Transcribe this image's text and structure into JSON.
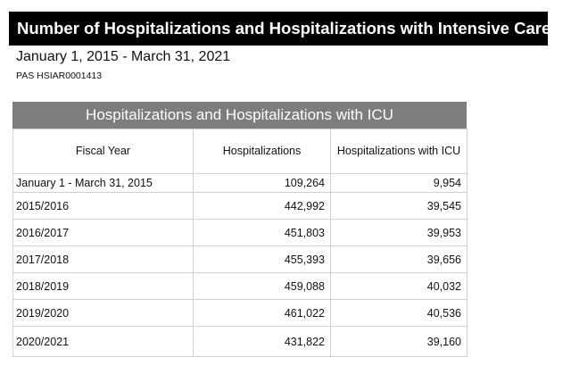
{
  "document": {
    "title": "Number of Hospitalizations and Hospitalizations with Intensive Care",
    "date_range": "January 1, 2015 - March 31, 2021",
    "report_id": "PAS HSIAR0001413"
  },
  "table": {
    "caption": "Hospitalizations and Hospitalizations with ICU",
    "columns": [
      "Fiscal Year",
      "Hospitalizations",
      "Hospitalizations with ICU"
    ],
    "rows": [
      {
        "fiscal_year": "January 1 - March 31, 2015",
        "hospitalizations": "109,264",
        "icu": "9,954"
      },
      {
        "fiscal_year": "2015/2016",
        "hospitalizations": "442,992",
        "icu": "39,545"
      },
      {
        "fiscal_year": "2016/2017",
        "hospitalizations": "451,803",
        "icu": "39,953"
      },
      {
        "fiscal_year": "2017/2018",
        "hospitalizations": "455,393",
        "icu": "39,656"
      },
      {
        "fiscal_year": "2018/2019",
        "hospitalizations": "459,088",
        "icu": "40,032"
      },
      {
        "fiscal_year": "2019/2020",
        "hospitalizations": "461,022",
        "icu": "40,536"
      },
      {
        "fiscal_year": "2020/2021",
        "hospitalizations": "431,822",
        "icu": "39,160"
      }
    ]
  }
}
